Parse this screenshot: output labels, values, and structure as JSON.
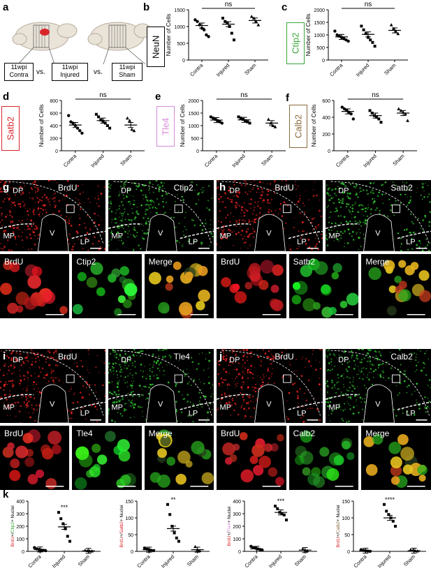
{
  "panel_a": {
    "letter": "a",
    "boxes": [
      {
        "line1": "11wpi",
        "line2": "Contra"
      },
      {
        "line1": "11wpi",
        "line2": "Injured"
      },
      {
        "line1": "11wpi",
        "line2": "Sham"
      }
    ],
    "vs": "vs."
  },
  "top_charts": [
    {
      "letter": "b",
      "marker": "NeuN",
      "marker_color": "#000000",
      "ylabel": "Number of Cells",
      "yticks": [
        "0",
        "500",
        "1000",
        "1500"
      ],
      "ylim": [
        0,
        1500
      ],
      "sig": "ns"
    },
    {
      "letter": "c",
      "marker": "Ctip2",
      "marker_color": "#3aa63a",
      "ylabel": "Number of Cells",
      "yticks": [
        "0",
        "500",
        "1000",
        "1500",
        "2000"
      ],
      "ylim": [
        0,
        2000
      ],
      "sig": "ns"
    },
    {
      "letter": "d",
      "marker": "Satb2",
      "marker_color": "#d9252b",
      "ylabel": "Number of Cells",
      "yticks": [
        "0",
        "200",
        "400",
        "600",
        "800"
      ],
      "ylim": [
        0,
        800
      ],
      "sig": "ns"
    },
    {
      "letter": "e",
      "marker": "Tle4",
      "marker_color": "#d68ad8",
      "ylabel": "Number of Cells",
      "yticks": [
        "0",
        "500",
        "1000",
        "1500",
        "2000"
      ],
      "ylim": [
        0,
        2000
      ],
      "sig": "ns"
    },
    {
      "letter": "f",
      "marker": "Calb2",
      "marker_color": "#8a6a3c",
      "ylabel": "Number of Cells",
      "yticks": [
        "0",
        "200",
        "400",
        "600"
      ],
      "ylim": [
        0,
        600
      ],
      "sig": "ns"
    }
  ],
  "categories": [
    "Contra",
    "Injured",
    "Sham"
  ],
  "chart_data": [
    {
      "type": "scatter",
      "marker": "NeuN",
      "categories": [
        "Contra",
        "Injured",
        "Sham"
      ],
      "ylabel": "Number of Cells",
      "ylim": [
        0,
        1500
      ],
      "series": [
        {
          "values": [
            [
              1200,
              1150,
              1050,
              950,
              900,
              750,
              700
            ],
            [
              1250,
              1150,
              1100,
              1000,
              800,
              600
            ],
            [
              1300,
              1250,
              1150,
              1050
            ]
          ]
        }
      ],
      "means": [
        1030,
        1070,
        1180
      ],
      "sig": "ns"
    },
    {
      "type": "scatter",
      "marker": "Ctip2",
      "categories": [
        "Contra",
        "Injured",
        "Sham"
      ],
      "ylabel": "Number of Cells",
      "ylim": [
        0,
        2000
      ],
      "series": [
        {
          "values": [
            [
              1150,
              1000,
              950,
              900,
              850,
              800,
              750
            ],
            [
              1350,
              1200,
              1050,
              900,
              800,
              700,
              550
            ],
            [
              1400,
              1250,
              1150,
              1050
            ]
          ]
        }
      ],
      "means": [
        920,
        1020,
        1180
      ],
      "sig": "ns"
    },
    {
      "type": "scatter",
      "marker": "Satb2",
      "categories": [
        "Contra",
        "Injured",
        "Sham"
      ],
      "ylabel": "Number of Cells",
      "ylim": [
        0,
        800
      ],
      "series": [
        {
          "values": [
            [
              560,
              460,
              440,
              400,
              360,
              320,
              280
            ],
            [
              580,
              540,
              490,
              470,
              440,
              400,
              360
            ],
            [
              520,
              480,
              340,
              320
            ]
          ]
        }
      ],
      "means": [
        410,
        480,
        410
      ],
      "sig": "ns"
    },
    {
      "type": "scatter",
      "marker": "Tle4",
      "categories": [
        "Contra",
        "Injured",
        "Sham"
      ],
      "ylabel": "Number of Cells",
      "ylim": [
        0,
        2000
      ],
      "series": [
        {
          "values": [
            [
              1350,
              1300,
              1250,
              1200,
              1150,
              1100
            ],
            [
              1350,
              1300,
              1250,
              1200,
              1150,
              1100
            ],
            [
              1250,
              1100,
              1000,
              950
            ]
          ]
        }
      ],
      "means": [
        1220,
        1230,
        1100
      ],
      "sig": "ns"
    },
    {
      "type": "scatter",
      "marker": "Calb2",
      "categories": [
        "Contra",
        "Injured",
        "Sham"
      ],
      "ylabel": "Number of Cells",
      "ylim": [
        0,
        600
      ],
      "series": [
        {
          "values": [
            [
              520,
              500,
              480,
              460,
              440,
              380
            ],
            [
              480,
              450,
              420,
              400,
              380,
              340
            ],
            [
              500,
              480,
              460,
              440,
              360
            ]
          ]
        }
      ],
      "means": [
        470,
        420,
        450
      ],
      "sig": "ns"
    },
    {
      "type": "scatter",
      "marker": "BrdU+/Ctip2+",
      "categories": [
        "Contra",
        "Injured",
        "Sham"
      ],
      "ylim": [
        0,
        400
      ],
      "series": [
        {
          "values": [
            [
              30,
              20,
              15,
              10,
              8,
              5
            ],
            [
              310,
              260,
              220,
              180,
              120,
              80
            ],
            [
              8,
              5,
              3,
              2
            ]
          ]
        }
      ],
      "means": [
        15,
        195,
        4
      ],
      "sig": "***"
    },
    {
      "type": "scatter",
      "marker": "BrdU+/Satb2+",
      "categories": [
        "Contra",
        "Injured",
        "Sham"
      ],
      "ylim": [
        0,
        150
      ],
      "series": [
        {
          "values": [
            [
              10,
              7,
              5,
              3,
              2
            ],
            [
              140,
              110,
              75,
              55,
              40,
              30
            ],
            [
              14,
              5,
              2
            ]
          ]
        }
      ],
      "means": [
        5,
        68,
        5
      ],
      "sig": "**"
    },
    {
      "type": "scatter",
      "marker": "BrdU+/Tle4+",
      "categories": [
        "Contra",
        "Injured",
        "Sham"
      ],
      "ylim": [
        0,
        400
      ],
      "series": [
        {
          "values": [
            [
              40,
              30,
              25,
              20,
              15,
              10
            ],
            [
              360,
              340,
              310,
              300,
              290,
              250
            ],
            [
              20,
              10,
              5
            ]
          ]
        }
      ],
      "means": [
        20,
        310,
        10
      ],
      "sig": "***"
    },
    {
      "type": "scatter",
      "marker": "BrdU+/Calb2+",
      "categories": [
        "Contra",
        "Injured",
        "Sham"
      ],
      "ylim": [
        0,
        150
      ],
      "series": [
        {
          "values": [
            [
              5,
              3,
              2,
              1,
              0
            ],
            [
              140,
              120,
              110,
              100,
              90,
              75
            ],
            [
              5,
              3,
              2,
              1
            ]
          ]
        }
      ],
      "means": [
        2,
        100,
        2
      ],
      "sig": "****"
    }
  ],
  "micro_panels": [
    {
      "letter": "g",
      "left_label": "BrdU",
      "right_label": "Ctip2",
      "right_color": "green",
      "regions_left": [
        "DP",
        "MP",
        "V",
        "LP"
      ],
      "regions_right": [
        "DP",
        "MP",
        "V",
        "LP"
      ],
      "zoom": [
        "BrdU",
        "Ctip2",
        "Merge"
      ]
    },
    {
      "letter": "h",
      "left_label": "BrdU",
      "right_label": "Satb2",
      "right_color": "green",
      "regions_left": [
        "DP",
        "MP",
        "V",
        "LP"
      ],
      "regions_right": [
        "DP",
        "MP",
        "V",
        "LP"
      ],
      "zoom": [
        "BrdU",
        "Satb2",
        "Merge"
      ]
    },
    {
      "letter": "i",
      "left_label": "BrdU",
      "right_label": "Tle4",
      "right_color": "green",
      "regions_left": [
        "DP",
        "MP",
        "V",
        "LP"
      ],
      "regions_right": [
        "DP",
        "MP",
        "V",
        "LP"
      ],
      "zoom": [
        "BrdU",
        "Tle4",
        "Merge"
      ]
    },
    {
      "letter": "j",
      "left_label": "BrdU",
      "right_label": "Calb2",
      "right_color": "green",
      "regions_left": [
        "DP",
        "MP",
        "V",
        "LP"
      ],
      "regions_right": [
        "DP",
        "MP",
        "V",
        "LP"
      ],
      "zoom": [
        "BrdU",
        "Calb2",
        "Merge"
      ]
    }
  ],
  "bottom_charts": [
    {
      "letter": "k",
      "ylabel_brdu": "BrdU",
      "ylabel_sep": "+/",
      "ylabel_marker": "Ctip2",
      "ylabel_suffix": "+ Nuclei",
      "marker_color": "#3aa63a",
      "yticks": [
        "0",
        "100",
        "200",
        "300",
        "400"
      ],
      "ylim": [
        0,
        400
      ],
      "sig": "***"
    },
    {
      "letter": "",
      "ylabel_brdu": "BrdU",
      "ylabel_sep": "+/",
      "ylabel_marker": "Satb2",
      "ylabel_suffix": "+ Nuclei",
      "marker_color": "#d9252b",
      "yticks": [
        "0",
        "50",
        "100",
        "150"
      ],
      "ylim": [
        0,
        150
      ],
      "sig": "**"
    },
    {
      "letter": "",
      "ylabel_brdu": "BrdU",
      "ylabel_sep": "+/",
      "ylabel_marker": "Tle4",
      "ylabel_suffix": "+ Nuclei",
      "marker_color": "#d68ad8",
      "yticks": [
        "0",
        "100",
        "200",
        "300",
        "400"
      ],
      "ylim": [
        0,
        400
      ],
      "sig": "***"
    },
    {
      "letter": "",
      "ylabel_brdu": "BrdU",
      "ylabel_sep": "+/",
      "ylabel_marker": "Calb2",
      "ylabel_suffix": "+ Nuclei",
      "marker_color": "#8a6a3c",
      "yticks": [
        "0",
        "50",
        "100",
        "150"
      ],
      "ylim": [
        0,
        150
      ],
      "sig": "****"
    }
  ]
}
